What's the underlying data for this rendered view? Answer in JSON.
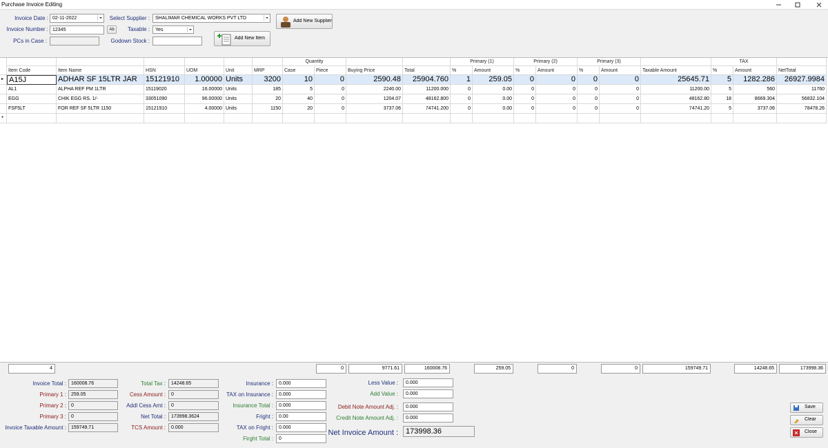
{
  "window": {
    "title": "Purchase Invoice Editing"
  },
  "header": {
    "invoice_date": {
      "label": "Invoice Date :",
      "value": "02-11-2022"
    },
    "invoice_number": {
      "label": "Invoice Number :",
      "value": "12345"
    },
    "pcs_in_case": {
      "label": "PCs in Case :"
    },
    "supplier": {
      "label": "Select Supplier :",
      "value": "SHALIMAR CHEMICAL WORKS PVT LTD"
    },
    "taxable": {
      "label": "Taxable :",
      "value": "Yes"
    },
    "godown_stock": {
      "label": "Godown Stock :"
    },
    "ab_button": "Ab",
    "add_supplier": "Add New Supplier",
    "add_item": "Add New Item"
  },
  "table": {
    "groups": [
      "Quantity",
      "Primary (1)",
      "Primary (2)",
      "Primary (3)",
      "TAX"
    ],
    "columns": [
      "Item Code",
      "Item Name",
      "HSN",
      "UOM",
      "Unit",
      "MRP",
      "Case",
      "Piece",
      "Buying Price",
      "Total",
      "%",
      "Amount",
      "%",
      "Amount",
      "%",
      "Amount",
      "Taxable Amount",
      "%",
      "Amount",
      "NetTotal"
    ],
    "rows": [
      [
        "A15J",
        "ADHAR SF 15LTR JAR",
        "15121910",
        "1.00000",
        "Units",
        "3200",
        "10",
        "0",
        "2590.48",
        "25904.760",
        "1",
        "259.05",
        "0",
        "0",
        "0",
        "0",
        "25645.71",
        "5",
        "1282.286",
        "26927.9984"
      ],
      [
        "AL1",
        "ALPHA REF PM 1LTR",
        "15119020",
        "16.00000",
        "Units",
        "185",
        "5",
        "0",
        "2240.00",
        "11200.000",
        "0",
        "0.00",
        "0",
        "0",
        "0",
        "0",
        "11200.00",
        "5",
        "560",
        "11760"
      ],
      [
        "EGG",
        "CHIK EGG RS. 1/-",
        "33051090",
        "96.00000",
        "Units",
        "20",
        "40",
        "0",
        "1204.07",
        "48162.800",
        "0",
        "0.00",
        "0",
        "0",
        "0",
        "0",
        "48162.80",
        "18",
        "8669.304",
        "56832.104"
      ],
      [
        "FSF5LT",
        "FOR REF SF 5LTR 1150",
        "15121910",
        "4.00000",
        "Units",
        "1150",
        "20",
        "0",
        "3737.06",
        "74741.200",
        "0",
        "0.00",
        "0",
        "0",
        "0",
        "0",
        "74741.20",
        "5",
        "3737.06",
        "78478.26"
      ]
    ],
    "totals": [
      "4",
      "0",
      "9771.61",
      "160008.76",
      "259.05",
      "0",
      "0",
      "159749.71",
      "14248.65",
      "173998.36"
    ]
  },
  "footer": {
    "col1": [
      {
        "label": "Invoice Total :",
        "value": "160008.76"
      },
      {
        "label": "Primary 1 :",
        "value": "259.05"
      },
      {
        "label": "Primary 2 :",
        "value": "0"
      },
      {
        "label": "Primary 3 :",
        "value": "0"
      },
      {
        "label": "Invoice Taxable Amount :",
        "value": "159749.71"
      }
    ],
    "col2": [
      {
        "label": "Total Tax :",
        "value": "14248.65"
      },
      {
        "label": "Cess Amount :",
        "value": "0"
      },
      {
        "label": "Addl Cess Amt :",
        "value": "0"
      },
      {
        "label": "Net Total :",
        "value": "173998.3624"
      },
      {
        "label": "TCS Amount :",
        "value": "0.000"
      }
    ],
    "col3": [
      {
        "label": "Insurance :",
        "value": "0.000"
      },
      {
        "label": "TAX on Insurance :",
        "value": "0.000"
      },
      {
        "label": "Insurance Total :",
        "value": "0.000"
      },
      {
        "label": "Fright :",
        "value": "0.00"
      },
      {
        "label": "TAX on Fright :",
        "value": "0.000"
      },
      {
        "label": "Firght Total :",
        "value": "0"
      }
    ],
    "col4": [
      {
        "label": "Less Value :",
        "value": "0.000"
      },
      {
        "label": "Add Value :",
        "value": "0.000"
      },
      {
        "label": "Debit Note Amount Adj. :",
        "value": "0.000"
      },
      {
        "label": "Credit Note Amount Adj. :",
        "value": "0.000"
      }
    ],
    "net_invoice": {
      "label": "Net Invoice Amount :",
      "value": "173998.36"
    }
  },
  "buttons": [
    "Save",
    "Clear",
    "Close"
  ]
}
